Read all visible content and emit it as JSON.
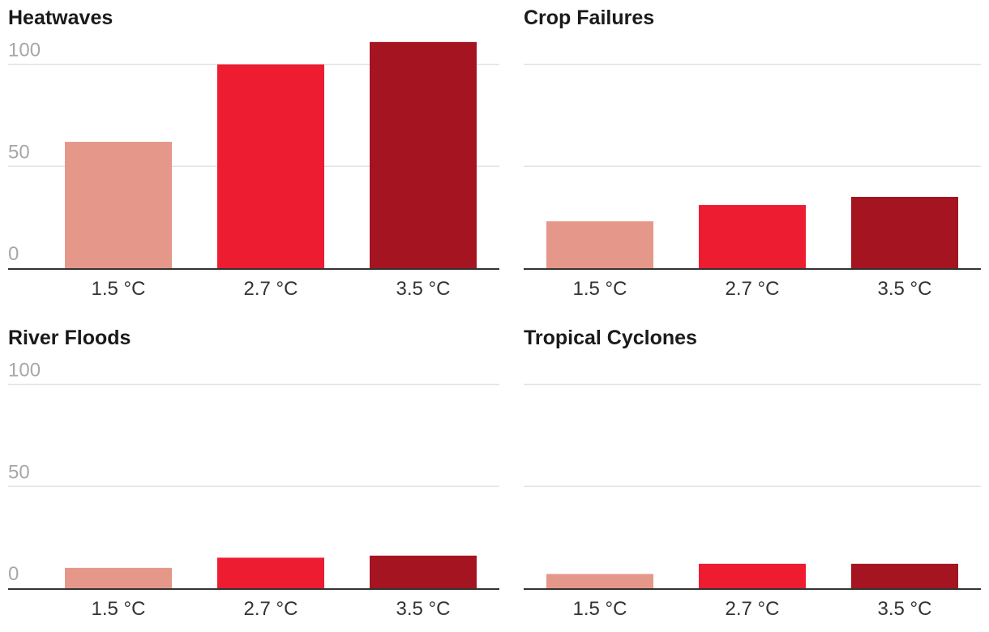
{
  "chart_data": [
    {
      "type": "bar",
      "title": "Heatwaves",
      "categories": [
        "1.5 °C",
        "2.7 °C",
        "3.5 °C"
      ],
      "values": [
        62,
        100,
        111
      ],
      "ylim": [
        0,
        100
      ],
      "yticks": [
        "0",
        "50",
        "100"
      ],
      "show_yticks": true,
      "grid": true
    },
    {
      "type": "bar",
      "title": "Crop Failures",
      "categories": [
        "1.5 °C",
        "2.7 °C",
        "3.5 °C"
      ],
      "values": [
        23,
        31,
        35
      ],
      "ylim": [
        0,
        100
      ],
      "yticks": [
        "0",
        "50",
        "100"
      ],
      "show_yticks": false,
      "grid": true
    },
    {
      "type": "bar",
      "title": "River Floods",
      "categories": [
        "1.5 °C",
        "2.7 °C",
        "3.5 °C"
      ],
      "values": [
        10,
        15,
        16
      ],
      "ylim": [
        0,
        100
      ],
      "yticks": [
        "0",
        "50",
        "100"
      ],
      "show_yticks": true,
      "grid": true
    },
    {
      "type": "bar",
      "title": "Tropical Cyclones",
      "categories": [
        "1.5 °C",
        "2.7 °C",
        "3.5 °C"
      ],
      "values": [
        7,
        12,
        12
      ],
      "ylim": [
        0,
        100
      ],
      "yticks": [
        "0",
        "50",
        "100"
      ],
      "show_yticks": false,
      "grid": true
    }
  ],
  "colors": [
    "#e5978a",
    "#ed1c31",
    "#a51421"
  ],
  "grid_color": "#e3e3e3",
  "axis_color": "#333333"
}
